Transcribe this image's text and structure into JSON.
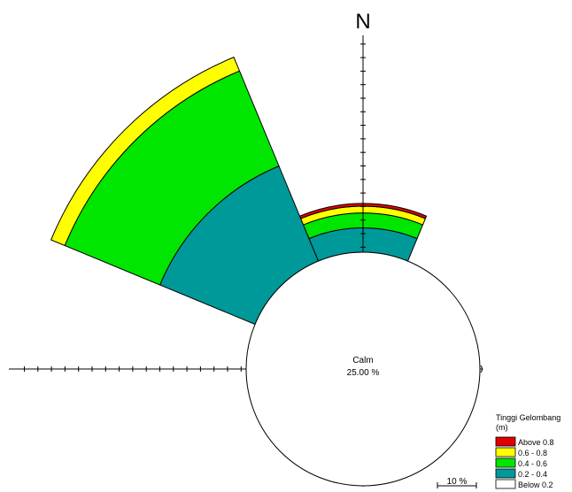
{
  "chart_data": {
    "type": "wind-rose",
    "north_label": "N",
    "calm_label": "Calm",
    "calm_value": "25.00 %",
    "scale_bar_label": "10 %",
    "legend_title": "Tinggi Gelombang",
    "legend_unit": "(m)",
    "bins": [
      {
        "label": "Above 0.8",
        "color": "#e00000"
      },
      {
        "label": "0.6 - 0.8",
        "color": "#ffff00"
      },
      {
        "label": "0.4 - 0.6",
        "color": "#00e600"
      },
      {
        "label": "0.2 - 0.4",
        "color": "#009999"
      },
      {
        "label": "Below 0.2",
        "color": "#ffffff"
      }
    ],
    "sectors": [
      {
        "name": "N",
        "center_deg": 0,
        "values": {
          "Above 0.8": 0.2,
          "0.6 - 0.8": 0.5,
          "0.4 - 0.6": 1.1,
          "0.2 - 0.4": 1.8
        }
      },
      {
        "name": "NW",
        "center_deg": 315,
        "values": {
          "Above 0.8": 0.0,
          "0.6 - 0.8": 1.1,
          "0.4 - 0.6": 7.6,
          "0.2 - 0.4": 7.6
        }
      }
    ]
  }
}
